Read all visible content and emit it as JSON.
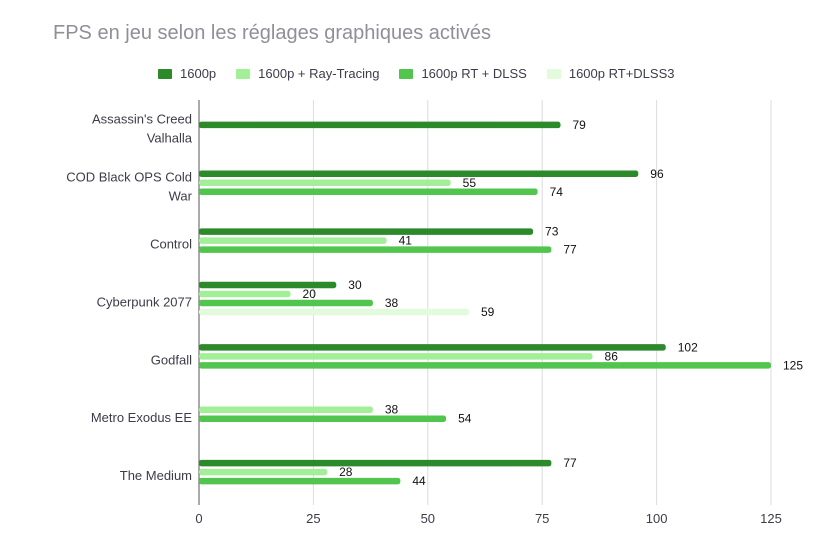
{
  "chart_data": {
    "type": "bar",
    "orientation": "horizontal",
    "title": "FPS en jeu selon les réglages graphiques activés",
    "categories": [
      "Assassin's Creed Valhalla",
      "COD Black OPS Cold War",
      "Control",
      "Cyberpunk 2077",
      "Godfall",
      "Metro Exodus EE",
      "The Medium"
    ],
    "category_lines": [
      [
        "Assassin's Creed",
        "Valhalla"
      ],
      [
        "COD Black OPS Cold",
        "War"
      ],
      [
        "Control"
      ],
      [
        "Cyberpunk 2077"
      ],
      [
        "Godfall"
      ],
      [
        "Metro Exodus EE"
      ],
      [
        "The Medium"
      ]
    ],
    "series": [
      {
        "name": "1600p",
        "color": "#2c8a2a",
        "values": [
          79,
          96,
          73,
          30,
          102,
          null,
          77
        ]
      },
      {
        "name": "1600p + Ray-Tracing",
        "color": "#a2ef98",
        "values": [
          null,
          55,
          41,
          20,
          86,
          38,
          28
        ]
      },
      {
        "name": "1600p RT + DLSS",
        "color": "#52c54e",
        "values": [
          null,
          74,
          77,
          38,
          125,
          54,
          44
        ]
      },
      {
        "name": "1600p RT+DLSS3",
        "color": "#e1fbdc",
        "values": [
          null,
          null,
          null,
          59,
          null,
          null,
          null
        ]
      }
    ],
    "xlim": [
      0,
      125
    ],
    "xticks": [
      "0",
      "25",
      "50",
      "75",
      "100",
      "125"
    ],
    "grid": true,
    "legend_position": "top"
  }
}
